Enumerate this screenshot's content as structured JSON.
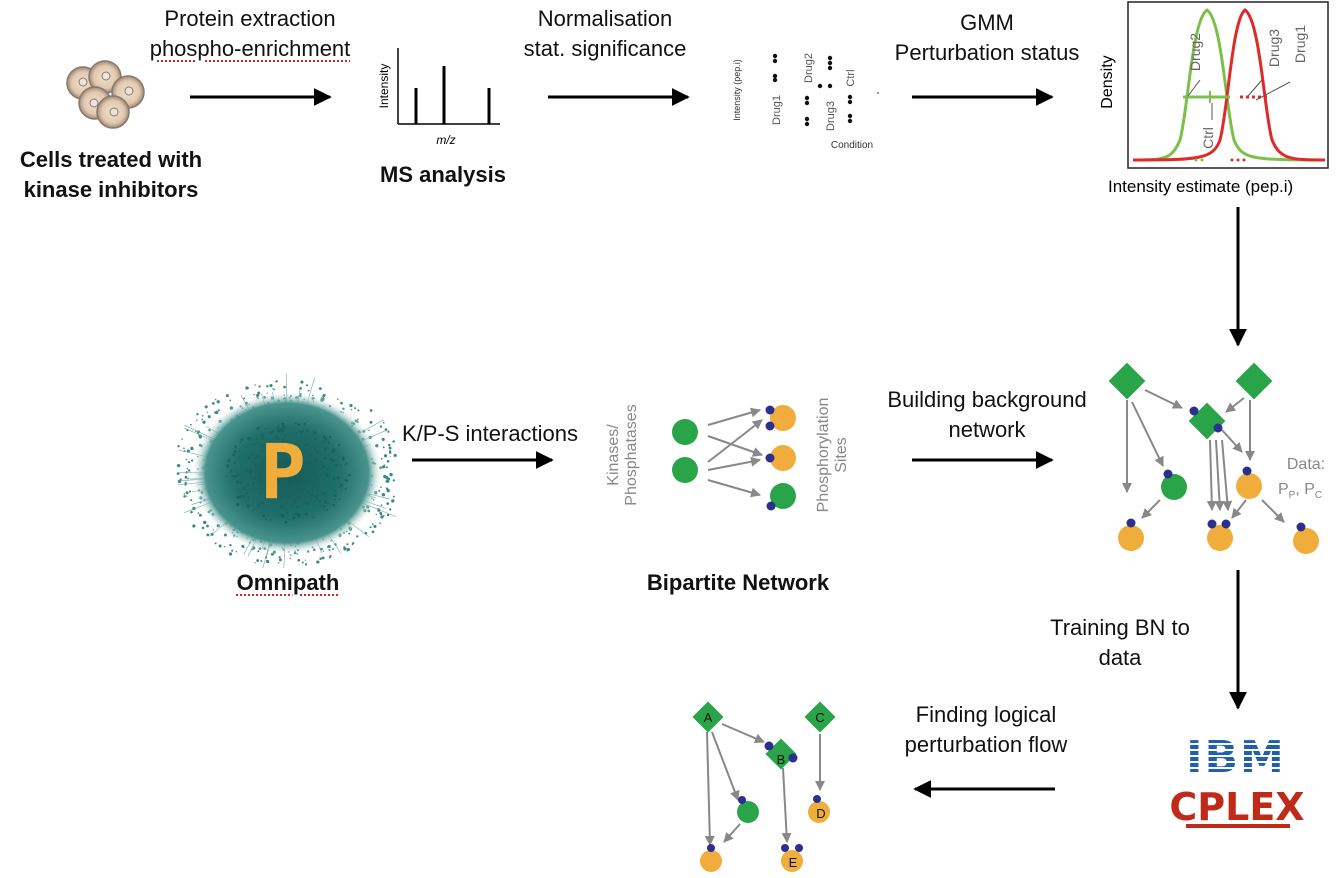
{
  "steps": {
    "cells_label_line1": "Cells treated with",
    "cells_label_line2": "kinase inhibitors",
    "protein_line1": "Protein extraction",
    "protein_line2": "phospho-enrichment",
    "ms_label": "MS analysis",
    "ms_ylabel": "Intensity",
    "ms_xlabel": "m/z",
    "norm_line1": "Normalisation",
    "norm_line2": "stat. significance",
    "gmm_line1": "GMM",
    "gmm_line2": "Perturbation status",
    "dot_ylabel": "Intensity (pep.i)",
    "dot_xlabel": "Condition",
    "dot_drug1": "Drug1",
    "dot_drug2": "Drug2",
    "dot_drug3": "Drug3",
    "dot_ctrl": "Ctrl",
    "density_ylabel": "Density",
    "density_xlabel": "Intensity estimate (pep.i)",
    "density_drug2": "Drug2",
    "density_drug3": "Drug3",
    "density_drug1": "Drug1",
    "density_ctrl": "Ctrl",
    "omnipath_label": "Omnipath",
    "omnipath_logo": "P",
    "kps_label": "K/P-S interactions",
    "kinases_line1": "Kinases/",
    "kinases_line2": "Phosphatases",
    "sites_line1": "Phosphorylation",
    "sites_line2": "Sites",
    "bipartite_label": "Bipartite Network",
    "background_line1": "Building background",
    "background_line2": "network",
    "data_line1": "Data:",
    "data_line2": "P",
    "data_sub_p": "P",
    "data_sep": ", P",
    "data_sub_c": "C",
    "training_line1": "Training BN to",
    "training_line2": "data",
    "ibm_label": "IBM",
    "cplex_label": "CPLEX",
    "finding_line1": "Finding logical",
    "finding_line2": "perturbation flow",
    "node_a": "A",
    "node_b": "B",
    "node_c": "C",
    "node_d": "D",
    "node_e": "E"
  },
  "colors": {
    "green": "#2aa448",
    "orange": "#f0ad3c",
    "blue_dot": "#2b2f8e",
    "teal": "#1f6f6a",
    "red": "#e02a2a",
    "light_green": "#7cc04b",
    "ibm_blue": "#1f5fb0",
    "cplex_red": "#c02a18",
    "arrow_gray": "#888888"
  }
}
